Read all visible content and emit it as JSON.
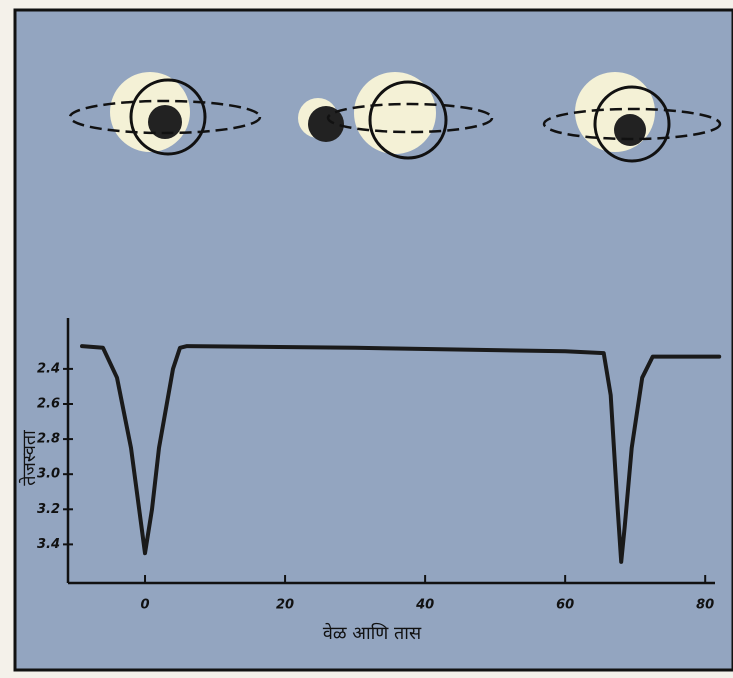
{
  "chart_data": {
    "type": "line",
    "x_label": "वेळ आणि तास",
    "y_label": "तेजस्वता",
    "x": [
      -9,
      -6,
      -4,
      -2,
      -1,
      0,
      1,
      2,
      4,
      5,
      6,
      30,
      60,
      65.5,
      66.5,
      67.5,
      68,
      68.5,
      69.5,
      71,
      72.5,
      74,
      82
    ],
    "values": [
      2.27,
      2.28,
      2.45,
      2.85,
      3.15,
      3.45,
      3.2,
      2.85,
      2.4,
      2.28,
      2.27,
      2.28,
      2.3,
      2.31,
      2.55,
      3.2,
      3.5,
      3.3,
      2.85,
      2.45,
      2.33,
      2.33,
      2.33
    ],
    "color": "#1a1a1a",
    "xlim": [
      -11,
      81.4
    ],
    "xticks": [
      0,
      20,
      40,
      60,
      80
    ],
    "ylim": [
      3.62,
      2.11
    ],
    "yticks": [
      2.4,
      2.6,
      2.8,
      {
        "value": 3,
        "label": "3.0"
      },
      3.2,
      3.4
    ]
  }
}
